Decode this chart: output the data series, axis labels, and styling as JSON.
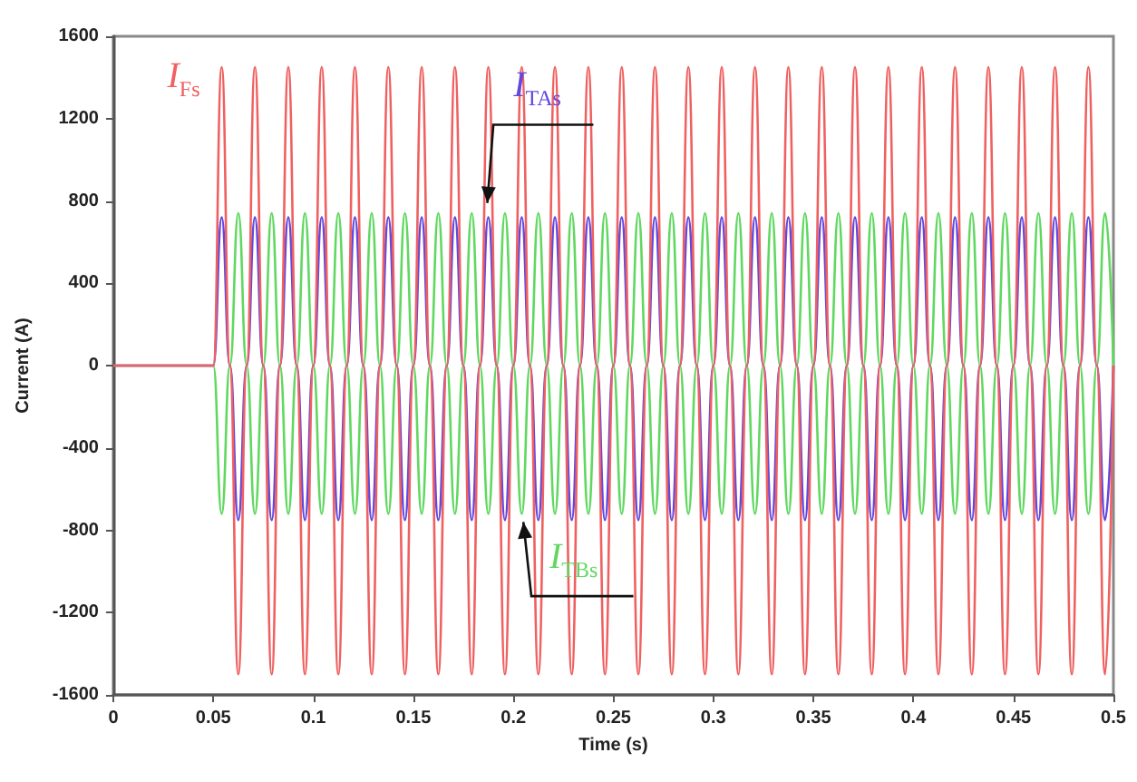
{
  "chart_data": {
    "type": "line",
    "xlabel": "Time (s)",
    "ylabel": "Current (A)",
    "x": [
      0,
      0.05,
      0.0542,
      0.0583,
      0.0625,
      0.0667,
      0.0708,
      0.075,
      0.0792,
      0.0833,
      0.0875,
      0.0917,
      0.0958,
      0.1,
      0.1042,
      0.1083,
      0.1125,
      0.1167,
      0.1208,
      0.125,
      0.1292,
      0.1333,
      0.1375,
      0.1417,
      0.1458,
      0.15,
      0.1542,
      0.1583,
      0.1625,
      0.1667,
      0.1708,
      0.175,
      0.1792,
      0.1833,
      0.1875,
      0.1917,
      0.1958,
      0.2,
      0.2042,
      0.2083,
      0.2125,
      0.2167,
      0.2208,
      0.225,
      0.2292,
      0.2333,
      0.2375,
      0.2417,
      0.2458,
      0.25,
      0.2542,
      0.2583,
      0.2625,
      0.2667,
      0.2708,
      0.275,
      0.2792,
      0.2833,
      0.2875,
      0.2917,
      0.2958,
      0.3,
      0.3042,
      0.3083,
      0.3125,
      0.3167,
      0.3208,
      0.325,
      0.3292,
      0.3333,
      0.3375,
      0.3417,
      0.3458,
      0.35,
      0.3542,
      0.3583,
      0.3625,
      0.3667,
      0.3708,
      0.375,
      0.3792,
      0.3833,
      0.3875,
      0.3917,
      0.3958,
      0.4,
      0.4042,
      0.4083,
      0.4125,
      0.4167,
      0.4208,
      0.425,
      0.4292,
      0.4333,
      0.4375,
      0.4417,
      0.4458,
      0.45,
      0.4542,
      0.4583,
      0.4625,
      0.4667,
      0.4708,
      0.475,
      0.4792,
      0.4833,
      0.4875,
      0.4917,
      0.4958,
      0.5
    ],
    "series": [
      {
        "name": "I$_{Fs}$",
        "color": "#f06060",
        "values": [
          0,
          0,
          1450,
          0,
          -1500,
          0,
          1450,
          0,
          -1500,
          0,
          1450,
          0,
          -1500,
          0,
          1450,
          0,
          -1500,
          0,
          1450,
          0,
          -1500,
          0,
          1450,
          0,
          -1500,
          0,
          1450,
          0,
          -1500,
          0,
          1450,
          0,
          -1500,
          0,
          1450,
          0,
          -1500,
          0,
          1450,
          0,
          -1500,
          0,
          1450,
          0,
          -1500,
          0,
          1450,
          0,
          -1500,
          0,
          1450,
          0,
          -1500,
          0,
          1450,
          0,
          -1500,
          0,
          1450,
          0,
          -1500,
          0,
          1450,
          0,
          -1500,
          0,
          1450,
          0,
          -1500,
          0,
          1450,
          0,
          -1500,
          0,
          1450,
          0,
          -1500,
          0,
          1450,
          0,
          -1500,
          0,
          1450,
          0,
          -1500,
          0,
          1450,
          0,
          -1500,
          0,
          1450,
          0,
          -1500,
          0,
          1450,
          0,
          -1500,
          0,
          1450,
          0,
          -1500,
          0,
          1450,
          0,
          -1500,
          0,
          1450,
          0,
          -1500,
          0
        ]
      },
      {
        "name": "I$_{TAs}$",
        "color": "#6048e0",
        "values": [
          0,
          0,
          720,
          0,
          -750,
          0,
          720,
          0,
          -750,
          0,
          720,
          0,
          -750,
          0,
          720,
          0,
          -750,
          0,
          720,
          0,
          -750,
          0,
          720,
          0,
          -750,
          0,
          720,
          0,
          -750,
          0,
          720,
          0,
          -750,
          0,
          720,
          0,
          -750,
          0,
          720,
          0,
          -750,
          0,
          720,
          0,
          -750,
          0,
          720,
          0,
          -750,
          0,
          720,
          0,
          -750,
          0,
          720,
          0,
          -750,
          0,
          720,
          0,
          -750,
          0,
          720,
          0,
          -750,
          0,
          720,
          0,
          -750,
          0,
          720,
          0,
          -750,
          0,
          720,
          0,
          -750,
          0,
          720,
          0,
          -750,
          0,
          720,
          0,
          -750,
          0,
          720,
          0,
          -750,
          0,
          720,
          0,
          -750,
          0,
          720,
          0,
          -750,
          0,
          720,
          0,
          -750,
          0,
          720,
          0,
          -750,
          0,
          720,
          0,
          -750,
          0
        ]
      },
      {
        "name": "I$_{TBs}$",
        "color": "#60d860",
        "values": [
          0,
          0,
          -720,
          0,
          740,
          0,
          -720,
          0,
          740,
          0,
          -720,
          0,
          740,
          0,
          -720,
          0,
          740,
          0,
          -720,
          0,
          740,
          0,
          -720,
          0,
          740,
          0,
          -720,
          0,
          740,
          0,
          -720,
          0,
          740,
          0,
          -720,
          0,
          740,
          0,
          -720,
          0,
          740,
          0,
          -720,
          0,
          740,
          0,
          -720,
          0,
          740,
          0,
          -720,
          0,
          740,
          0,
          -720,
          0,
          740,
          0,
          -720,
          0,
          740,
          0,
          -720,
          0,
          740,
          0,
          -720,
          0,
          740,
          0,
          -720,
          0,
          740,
          0,
          -720,
          0,
          740,
          0,
          -720,
          0,
          740,
          0,
          -720,
          0,
          740,
          0,
          -720,
          0,
          740,
          0,
          -720,
          0,
          740,
          0,
          -720,
          0,
          740,
          0,
          -720,
          0,
          740,
          0,
          -720,
          0,
          740,
          0,
          -720,
          0,
          740,
          0
        ]
      }
    ],
    "xlim": [
      0,
      0.5
    ],
    "xticks": [
      0,
      0.05,
      0.1,
      0.15,
      0.2,
      0.25,
      0.3,
      0.35,
      0.4,
      0.45,
      0.5
    ],
    "ylim": [
      -1600,
      1600
    ],
    "yticks": [
      -1600,
      -1200,
      -800,
      -400,
      0,
      400,
      800,
      1200,
      1600
    ],
    "grid": false,
    "legend": false,
    "marker": "none",
    "line_style": "solid"
  }
}
